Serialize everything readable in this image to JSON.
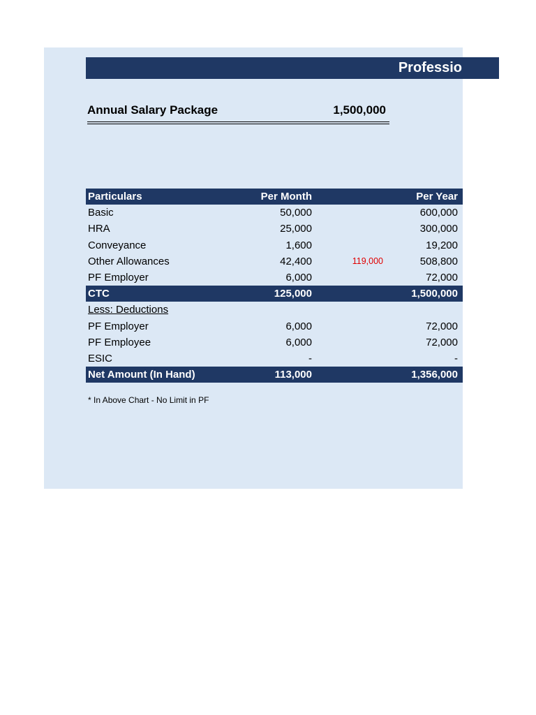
{
  "header": {
    "banner_title": "Professio"
  },
  "summary": {
    "label": "Annual Salary Package",
    "value": "1,500,000"
  },
  "table": {
    "headers": {
      "particulars": "Particulars",
      "per_month": "Per Month",
      "extra": "",
      "per_year": "Per Year"
    },
    "rows": [
      {
        "label": "Basic",
        "month": "50,000",
        "extra": "",
        "year": "600,000"
      },
      {
        "label": "HRA",
        "month": "25,000",
        "extra": "",
        "year": "300,000"
      },
      {
        "label": "Conveyance",
        "month": "1,600",
        "extra": "",
        "year": "19,200"
      },
      {
        "label": "Other Allowances",
        "month": "42,400",
        "extra": "119,000",
        "year": "508,800"
      },
      {
        "label": "PF Employer",
        "month": "6,000",
        "extra": "",
        "year": "72,000"
      },
      {
        "label": "CTC",
        "month": "125,000",
        "extra": "",
        "year": "1,500,000"
      },
      {
        "label": "Less: Deductions",
        "month": "",
        "extra": "",
        "year": ""
      },
      {
        "label": "PF Employer",
        "month": "6,000",
        "extra": "",
        "year": "72,000"
      },
      {
        "label": "PF Employee",
        "month": "6,000",
        "extra": "",
        "year": "72,000"
      },
      {
        "label": "ESIC",
        "month": "-",
        "extra": "",
        "year": "-"
      },
      {
        "label": "Net Amount (In Hand)",
        "month": "113,000",
        "extra": "",
        "year": "1,356,000"
      }
    ]
  },
  "footnote": "* In Above Chart - No Limit in PF",
  "colors": {
    "navy": "#1F3864",
    "panel_blue": "#DCE8F5",
    "highlight_red": "#E00000",
    "text": "#000000",
    "banner_text": "#FFFFFF"
  }
}
